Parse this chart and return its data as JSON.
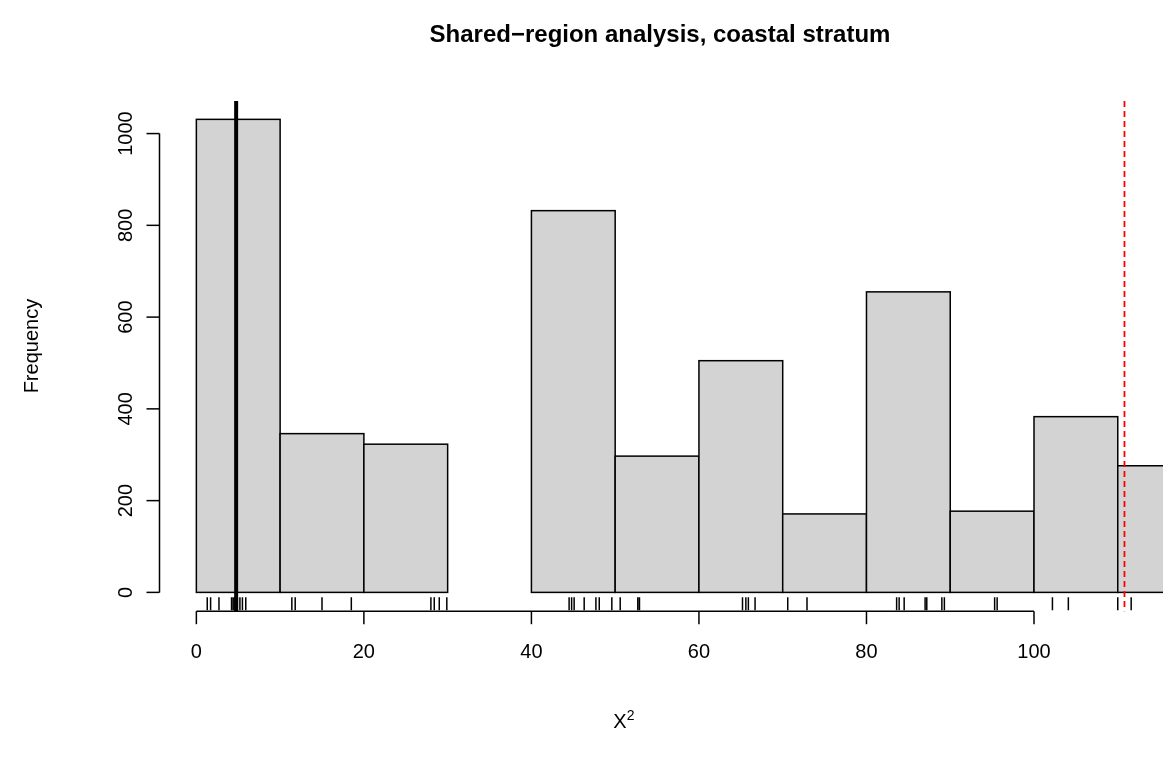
{
  "chart_data": {
    "type": "histogram",
    "title": "Shared−region analysis, coastal stratum",
    "xlabel": "X$^{2}$",
    "ylabel": "Frequency",
    "bins": [
      0,
      10,
      20,
      30,
      40,
      50,
      60,
      70,
      80,
      90,
      100,
      110,
      120
    ],
    "values": [
      1031,
      346,
      323,
      0,
      832,
      297,
      505,
      171,
      655,
      177,
      383,
      276
    ],
    "color": "#d3d3d3",
    "xlim": [
      -4.4,
      115.4
    ],
    "xticks": [
      0,
      20,
      40,
      60,
      80,
      100
    ],
    "ylim": [
      -41,
      1071
    ],
    "yticks": [
      0,
      200,
      400,
      600,
      800,
      1000
    ],
    "ref_lines": [
      {
        "axis": "x",
        "value": 4.75,
        "color": "#000000",
        "line_style": "solid"
      },
      {
        "axis": "x",
        "value": 110.8,
        "color": "#ff0000",
        "line_style": "dashed"
      }
    ]
  }
}
